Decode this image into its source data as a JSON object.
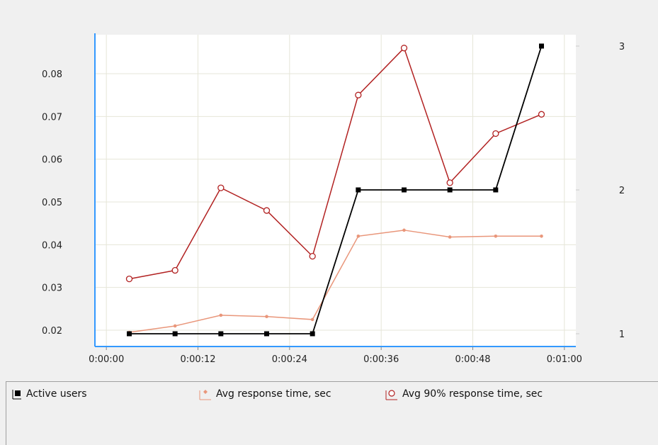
{
  "chart_data": {
    "type": "line",
    "x_ticks": [
      "0:00:00",
      "0:00:12",
      "0:00:24",
      "0:00:36",
      "0:00:48",
      "0:01:00"
    ],
    "x_tick_seconds": [
      0,
      12,
      24,
      36,
      48,
      60
    ],
    "xlim_seconds": [
      -1.5,
      61.5
    ],
    "y_left_ticks": [
      "0.02",
      "0.03",
      "0.04",
      "0.05",
      "0.06",
      "0.07",
      "0.08"
    ],
    "y_left_tick_values": [
      0.02,
      0.03,
      0.04,
      0.05,
      0.06,
      0.07,
      0.08
    ],
    "y_left_lim": [
      0.0185,
      0.0885
    ],
    "y_right_ticks": [
      "1",
      "2",
      "3"
    ],
    "y_right_tick_values": [
      1,
      2,
      3
    ],
    "y_right_lim": [
      1,
      3
    ],
    "grid": true,
    "series": [
      {
        "name": "Active users",
        "axis": "right",
        "color": "#000000",
        "marker": "filled-square",
        "x_seconds": [
          3,
          9,
          15,
          21,
          27,
          33,
          39,
          45,
          51,
          57
        ],
        "values": [
          1,
          1,
          1,
          1,
          1,
          2,
          2,
          2,
          2,
          3
        ]
      },
      {
        "name": "Avg response time, sec",
        "axis": "left",
        "color": "#e9967a",
        "marker": "small-diamond",
        "x_seconds": [
          3,
          9,
          15,
          21,
          27,
          33,
          39,
          45,
          51,
          57
        ],
        "values": [
          0.0195,
          0.021,
          0.0235,
          0.0232,
          0.0225,
          0.042,
          0.0434,
          0.0418,
          0.042,
          0.042
        ]
      },
      {
        "name": "Avg 90% response time, sec",
        "axis": "left",
        "color": "#b22222",
        "marker": "open-circle",
        "x_seconds": [
          3,
          9,
          15,
          21,
          27,
          33,
          39,
          45,
          51,
          57
        ],
        "values": [
          0.032,
          0.034,
          0.0533,
          0.048,
          0.0373,
          0.075,
          0.086,
          0.0545,
          0.066,
          0.0705
        ]
      }
    ]
  },
  "legend": {
    "items": [
      {
        "label": "Active users",
        "icon": "filled-square-icon"
      },
      {
        "label": "Avg response time, sec",
        "icon": "diamond-line-icon"
      },
      {
        "label": "Avg 90% response time, sec",
        "icon": "circle-line-icon"
      }
    ]
  }
}
